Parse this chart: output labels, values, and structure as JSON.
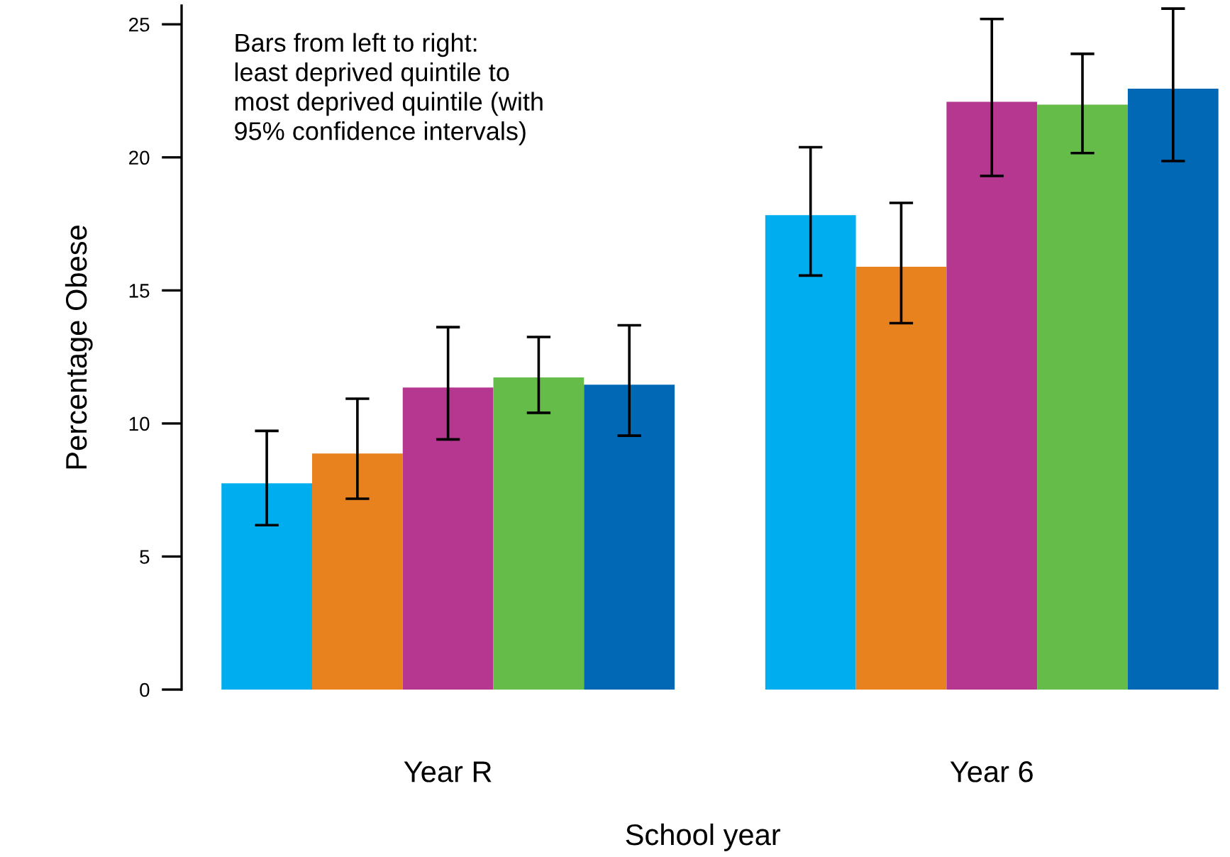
{
  "chart_data": {
    "type": "bar",
    "xlabel": "School year",
    "ylabel": "Percentage Obese",
    "categories": [
      "Year R",
      "Year 6"
    ],
    "series": [
      {
        "color": "#00aeef",
        "values": [
          7.75,
          17.83
        ],
        "errors": [
          [
            6.18,
            9.72
          ],
          [
            15.56,
            20.38
          ]
        ]
      },
      {
        "color": "#e8821e",
        "values": [
          8.87,
          15.89
        ],
        "errors": [
          [
            7.17,
            10.93
          ],
          [
            13.77,
            18.29
          ]
        ]
      },
      {
        "color": "#b5378f",
        "values": [
          11.35,
          22.09
        ],
        "errors": [
          [
            9.4,
            13.62
          ],
          [
            19.3,
            25.2
          ]
        ]
      },
      {
        "color": "#65bc48",
        "values": [
          11.73,
          21.98
        ],
        "errors": [
          [
            10.4,
            13.25
          ],
          [
            20.16,
            23.89
          ]
        ]
      },
      {
        "color": "#0068b4",
        "values": [
          11.46,
          22.58
        ],
        "errors": [
          [
            9.54,
            13.69
          ],
          [
            19.86,
            25.59
          ]
        ]
      }
    ],
    "ylim": [
      0,
      25.7
    ],
    "yticks": [
      0,
      5,
      10,
      15,
      20,
      25
    ],
    "grid": false,
    "annotations": [
      "Bars from left to right:\nleast deprived quintile to\nmost deprived quintile (with\n95% confidence intervals)"
    ]
  }
}
